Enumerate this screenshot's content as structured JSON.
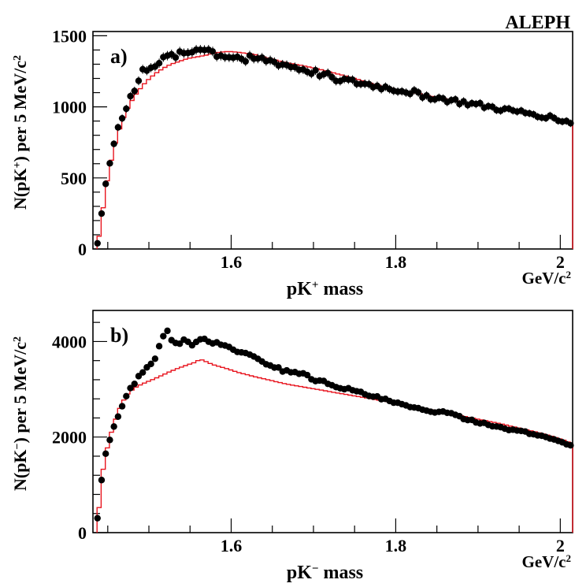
{
  "header": {
    "experiment": "ALEPH"
  },
  "colors": {
    "data": "#000000",
    "model": "#e8141e",
    "frame": "#000000"
  },
  "chart_data": [
    {
      "type": "scatter",
      "panel": "a)",
      "xlabel": {
        "base": "pK",
        "sup": "+",
        "rest": " mass"
      },
      "ylabel": {
        "pre": "N(pK",
        "sup": "+",
        "post": ") per 5 MeV/c",
        "unitSup": "2"
      },
      "xunit": {
        "base": "GeV/c",
        "sup": "2"
      },
      "xlim": [
        1.432,
        2.015
      ],
      "ylim": [
        0,
        1530
      ],
      "xticks": [
        1.6,
        1.8,
        2.0
      ],
      "xtick_labels": [
        "1.6",
        "1.8",
        "2"
      ],
      "yticks": [
        0,
        500,
        1000,
        1500
      ],
      "ytick_labels": [
        "0",
        "500",
        "1000",
        "1500"
      ],
      "data_anchors": [
        [
          1.4375,
          40
        ],
        [
          1.4425,
          250
        ],
        [
          1.4475,
          460
        ],
        [
          1.4525,
          600
        ],
        [
          1.4575,
          750
        ],
        [
          1.4625,
          860
        ],
        [
          1.4675,
          930
        ],
        [
          1.4725,
          980
        ],
        [
          1.4775,
          1080
        ],
        [
          1.4825,
          1110
        ],
        [
          1.4875,
          1180
        ],
        [
          1.4925,
          1250
        ],
        [
          1.5025,
          1290
        ],
        [
          1.5125,
          1310
        ],
        [
          1.5225,
          1350
        ],
        [
          1.5325,
          1360
        ],
        [
          1.5425,
          1370
        ],
        [
          1.5525,
          1390
        ],
        [
          1.5625,
          1420
        ],
        [
          1.5725,
          1400
        ],
        [
          1.5825,
          1370
        ],
        [
          1.5925,
          1360
        ],
        [
          1.6025,
          1350
        ],
        [
          1.6225,
          1340
        ],
        [
          1.6425,
          1330
        ],
        [
          1.6625,
          1300
        ],
        [
          1.6825,
          1270
        ],
        [
          1.7025,
          1240
        ],
        [
          1.7225,
          1210
        ],
        [
          1.7425,
          1180
        ],
        [
          1.7625,
          1160
        ],
        [
          1.7825,
          1140
        ],
        [
          1.8025,
          1120
        ],
        [
          1.8225,
          1100
        ],
        [
          1.8425,
          1070
        ],
        [
          1.8625,
          1050
        ],
        [
          1.8825,
          1030
        ],
        [
          1.9025,
          1010
        ],
        [
          1.9225,
          990
        ],
        [
          1.9425,
          970
        ],
        [
          1.9625,
          955
        ],
        [
          1.9825,
          935
        ],
        [
          2.0025,
          905
        ],
        [
          2.0125,
          895
        ]
      ],
      "model_anchors": [
        [
          1.437,
          0
        ],
        [
          1.442,
          180
        ],
        [
          1.447,
          400
        ],
        [
          1.452,
          560
        ],
        [
          1.457,
          690
        ],
        [
          1.462,
          800
        ],
        [
          1.467,
          890
        ],
        [
          1.472,
          960
        ],
        [
          1.477,
          1020
        ],
        [
          1.482,
          1070
        ],
        [
          1.487,
          1110
        ],
        [
          1.497,
          1180
        ],
        [
          1.507,
          1230
        ],
        [
          1.517,
          1270
        ],
        [
          1.527,
          1300
        ],
        [
          1.537,
          1320
        ],
        [
          1.547,
          1340
        ],
        [
          1.557,
          1350
        ],
        [
          1.567,
          1360
        ],
        [
          1.577,
          1375
        ],
        [
          1.587,
          1385
        ],
        [
          1.597,
          1390
        ],
        [
          1.607,
          1385
        ],
        [
          1.627,
          1370
        ],
        [
          1.647,
          1340
        ],
        [
          1.667,
          1310
        ],
        [
          1.687,
          1290
        ],
        [
          1.707,
          1265
        ],
        [
          1.727,
          1235
        ],
        [
          1.747,
          1205
        ],
        [
          1.767,
          1170
        ],
        [
          1.787,
          1140
        ],
        [
          1.807,
          1115
        ],
        [
          1.827,
          1095
        ],
        [
          1.847,
          1070
        ],
        [
          1.867,
          1050
        ],
        [
          1.887,
          1025
        ],
        [
          1.907,
          1005
        ],
        [
          1.927,
          985
        ],
        [
          1.947,
          965
        ],
        [
          1.967,
          945
        ],
        [
          1.987,
          925
        ],
        [
          2.007,
          905
        ],
        [
          2.014,
          895
        ]
      ],
      "data_points": true,
      "error_bars": true
    },
    {
      "type": "scatter",
      "panel": "b)",
      "xlabel": {
        "base": "pK",
        "sup": "−",
        "rest": " mass"
      },
      "ylabel": {
        "pre": "N(pK",
        "sup": "−",
        "post": ") per 5 MeV/c",
        "unitSup": "2"
      },
      "xunit": {
        "base": "GeV/c",
        "sup": "2"
      },
      "xlim": [
        1.432,
        2.015
      ],
      "ylim": [
        0,
        4650
      ],
      "xticks": [
        1.6,
        1.8,
        2.0
      ],
      "xtick_labels": [
        "1.6",
        "1.8",
        "2"
      ],
      "yticks": [
        0,
        2000,
        4000
      ],
      "ytick_labels": [
        "0",
        "2000",
        "4000"
      ],
      "data_anchors": [
        [
          1.4375,
          300
        ],
        [
          1.4425,
          1100
        ],
        [
          1.4475,
          1650
        ],
        [
          1.4525,
          1950
        ],
        [
          1.4575,
          2200
        ],
        [
          1.4625,
          2450
        ],
        [
          1.4675,
          2650
        ],
        [
          1.4725,
          2850
        ],
        [
          1.4775,
          3000
        ],
        [
          1.4825,
          3100
        ],
        [
          1.4875,
          3250
        ],
        [
          1.4925,
          3350
        ],
        [
          1.4975,
          3450
        ],
        [
          1.5025,
          3550
        ],
        [
          1.5075,
          3650
        ],
        [
          1.5125,
          3900
        ],
        [
          1.5175,
          4150
        ],
        [
          1.5225,
          4200
        ],
        [
          1.5275,
          4000
        ],
        [
          1.5325,
          3950
        ],
        [
          1.5425,
          4000
        ],
        [
          1.5525,
          3950
        ],
        [
          1.5625,
          4050
        ],
        [
          1.5725,
          4000
        ],
        [
          1.5825,
          3950
        ],
        [
          1.5925,
          3900
        ],
        [
          1.6025,
          3850
        ],
        [
          1.6225,
          3700
        ],
        [
          1.6425,
          3550
        ],
        [
          1.6625,
          3400
        ],
        [
          1.6825,
          3350
        ],
        [
          1.7025,
          3200
        ],
        [
          1.7225,
          3100
        ],
        [
          1.7425,
          3000
        ],
        [
          1.7625,
          2900
        ],
        [
          1.7825,
          2800
        ],
        [
          1.8025,
          2700
        ],
        [
          1.8225,
          2600
        ],
        [
          1.8425,
          2550
        ],
        [
          1.8625,
          2500
        ],
        [
          1.8825,
          2400
        ],
        [
          1.9025,
          2300
        ],
        [
          1.9225,
          2200
        ],
        [
          1.9425,
          2150
        ],
        [
          1.9625,
          2080
        ],
        [
          1.9825,
          2000
        ],
        [
          2.0025,
          1900
        ],
        [
          2.0125,
          1830
        ]
      ],
      "model_anchors": [
        [
          1.437,
          0
        ],
        [
          1.442,
          1050
        ],
        [
          1.447,
          1600
        ],
        [
          1.452,
          1950
        ],
        [
          1.457,
          2250
        ],
        [
          1.462,
          2500
        ],
        [
          1.467,
          2700
        ],
        [
          1.472,
          2850
        ],
        [
          1.477,
          2950
        ],
        [
          1.482,
          3020
        ],
        [
          1.487,
          3070
        ],
        [
          1.497,
          3150
        ],
        [
          1.507,
          3220
        ],
        [
          1.517,
          3300
        ],
        [
          1.527,
          3380
        ],
        [
          1.537,
          3450
        ],
        [
          1.547,
          3510
        ],
        [
          1.557,
          3570
        ],
        [
          1.562,
          3630
        ],
        [
          1.567,
          3600
        ],
        [
          1.577,
          3520
        ],
        [
          1.587,
          3470
        ],
        [
          1.597,
          3420
        ],
        [
          1.607,
          3360
        ],
        [
          1.627,
          3270
        ],
        [
          1.647,
          3190
        ],
        [
          1.667,
          3110
        ],
        [
          1.687,
          3050
        ],
        [
          1.707,
          2990
        ],
        [
          1.727,
          2930
        ],
        [
          1.747,
          2870
        ],
        [
          1.767,
          2810
        ],
        [
          1.787,
          2750
        ],
        [
          1.807,
          2700
        ],
        [
          1.827,
          2630
        ],
        [
          1.847,
          2560
        ],
        [
          1.867,
          2490
        ],
        [
          1.887,
          2420
        ],
        [
          1.907,
          2350
        ],
        [
          1.927,
          2280
        ],
        [
          1.947,
          2200
        ],
        [
          1.967,
          2120
        ],
        [
          1.987,
          2030
        ],
        [
          2.007,
          1920
        ],
        [
          2.014,
          1860
        ]
      ],
      "data_points": true,
      "error_bars": false
    }
  ]
}
